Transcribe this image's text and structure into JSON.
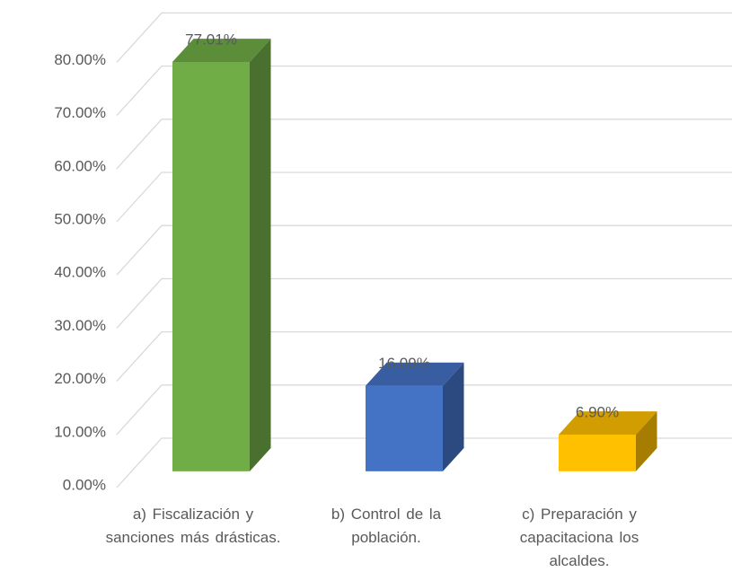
{
  "chart_data": {
    "type": "bar3d",
    "categories": [
      "a)   Fiscalización y sanciones más drásticas.",
      "b)   Control de la población.",
      "c)   Preparación y capacitaciona los alcaldes."
    ],
    "values": [
      77.01,
      16.09,
      6.9
    ],
    "value_labels": [
      "77.01%",
      "16.09%",
      "6.90%"
    ],
    "colors": [
      "#70ad47",
      "#4472c4",
      "#ffc000"
    ],
    "ylim": [
      0,
      80
    ],
    "yticks": [
      {
        "value": 0,
        "label": "0.00%"
      },
      {
        "value": 10,
        "label": "10.00%"
      },
      {
        "value": 20,
        "label": "20.00%"
      },
      {
        "value": 30,
        "label": "30.00%"
      },
      {
        "value": 40,
        "label": "40.00%"
      },
      {
        "value": 50,
        "label": "50.00%"
      },
      {
        "value": 60,
        "label": "60.00%"
      },
      {
        "value": 70,
        "label": "70.00%"
      },
      {
        "value": 80,
        "label": "80.00%"
      }
    ],
    "grid": true
  }
}
